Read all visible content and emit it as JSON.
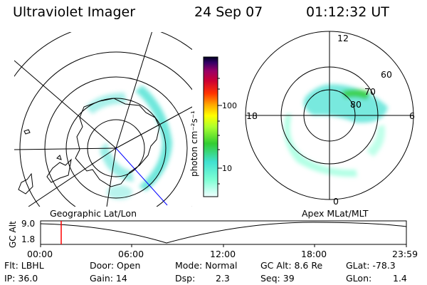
{
  "header": {
    "instrument": "Ultraviolet Imager",
    "date": "24 Sep 07",
    "time": "01:12:32 UT"
  },
  "left_map": {
    "caption": "Geographic Lat/Lon"
  },
  "right_map": {
    "caption": "Apex MLat/MLT",
    "mlt_labels": {
      "top": "12",
      "left": "18",
      "right": "6",
      "bottom": "0"
    },
    "lat_labels": [
      "60",
      "70",
      "80"
    ]
  },
  "colorbar": {
    "unit_label": "photon cm⁻²s⁻¹",
    "ticks": [
      "100",
      "10"
    ]
  },
  "altitude_plot": {
    "ylabel": "GC Alt",
    "ymax_label": "9.0",
    "ymin_label": "1.8",
    "time_ticks": [
      "00:00",
      "06:00",
      "12:00",
      "18:00",
      "23:59"
    ],
    "marker_color": "#ff0000"
  },
  "footer": {
    "row1": [
      {
        "name": "footer-filter",
        "text": "Flt: LBHL"
      },
      {
        "name": "footer-door",
        "text": "Door: Open"
      },
      {
        "name": "footer-mode",
        "text": "Mode: Normal"
      },
      {
        "name": "footer-gc-alt",
        "text": "GC Alt: 8.6 Re"
      },
      {
        "name": "footer-glat",
        "text": "GLat: -78.3"
      }
    ],
    "row2": [
      {
        "name": "footer-ip",
        "text": "IP: 36.0"
      },
      {
        "name": "footer-gain",
        "text": "Gain: 14"
      },
      {
        "name": "footer-dsp-label",
        "text": "Dsp:"
      },
      {
        "name": "footer-dsp-value",
        "text": "2.3"
      },
      {
        "name": "footer-seq",
        "text": "Seq: 39"
      },
      {
        "name": "footer-glon-label",
        "text": "GLon:"
      },
      {
        "name": "footer-glon-value",
        "text": "1.4"
      }
    ]
  },
  "colors": {
    "aurora": "#40e0d0",
    "grid": "#000000",
    "track": "#0000ff"
  }
}
